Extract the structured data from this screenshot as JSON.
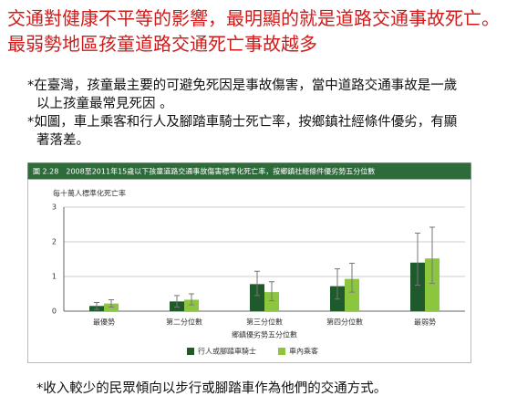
{
  "slide": {
    "title": "交通對健康不平等的影響，最明顯的就是道路交通事故死亡。最弱勢地區孩童道路交通死亡事故越多",
    "bullets": [
      "*在臺灣，孩童最主要的可避免死因是事故傷害，當中道路交通事故是一歲以上孩童最常見死因 。",
      "*如圖，車上乘客和行人及腳踏車騎士死亡率，按鄉鎮社經條件優劣，有顯著落差。"
    ],
    "footnote": "*收入較少的民眾傾向以步行或腳踏車作為他們的交通方式。"
  },
  "chart_data": {
    "type": "bar",
    "title": "圖 2.28　2008至2011年15歲以下孩童道路交通事故傷害標準化死亡率，按鄉鎮社經條件優劣勢五分位數",
    "y_label": "每十萬人標準化死亡率",
    "x_label": "鄉鎮優劣勢五分位數",
    "categories": [
      "最優勢",
      "第二分位數",
      "第三分位數",
      "第四分位數",
      "最弱勢"
    ],
    "series": [
      {
        "name": "行人或腳踏車騎士",
        "color": "#1f5a2c",
        "values": [
          0.15,
          0.28,
          0.78,
          0.72,
          1.4
        ],
        "lower": [
          0.05,
          0.12,
          0.45,
          0.35,
          0.75
        ],
        "upper": [
          0.25,
          0.45,
          1.15,
          1.22,
          2.25
        ]
      },
      {
        "name": "車內乘客",
        "color": "#8cc63f",
        "values": [
          0.22,
          0.33,
          0.55,
          0.93,
          1.52
        ],
        "lower": [
          0.12,
          0.18,
          0.3,
          0.55,
          0.8
        ],
        "upper": [
          0.33,
          0.5,
          0.85,
          1.38,
          2.42
        ]
      }
    ],
    "ylim": [
      0,
      3
    ],
    "yticks": [
      0,
      1,
      2,
      3
    ],
    "grid": true
  }
}
